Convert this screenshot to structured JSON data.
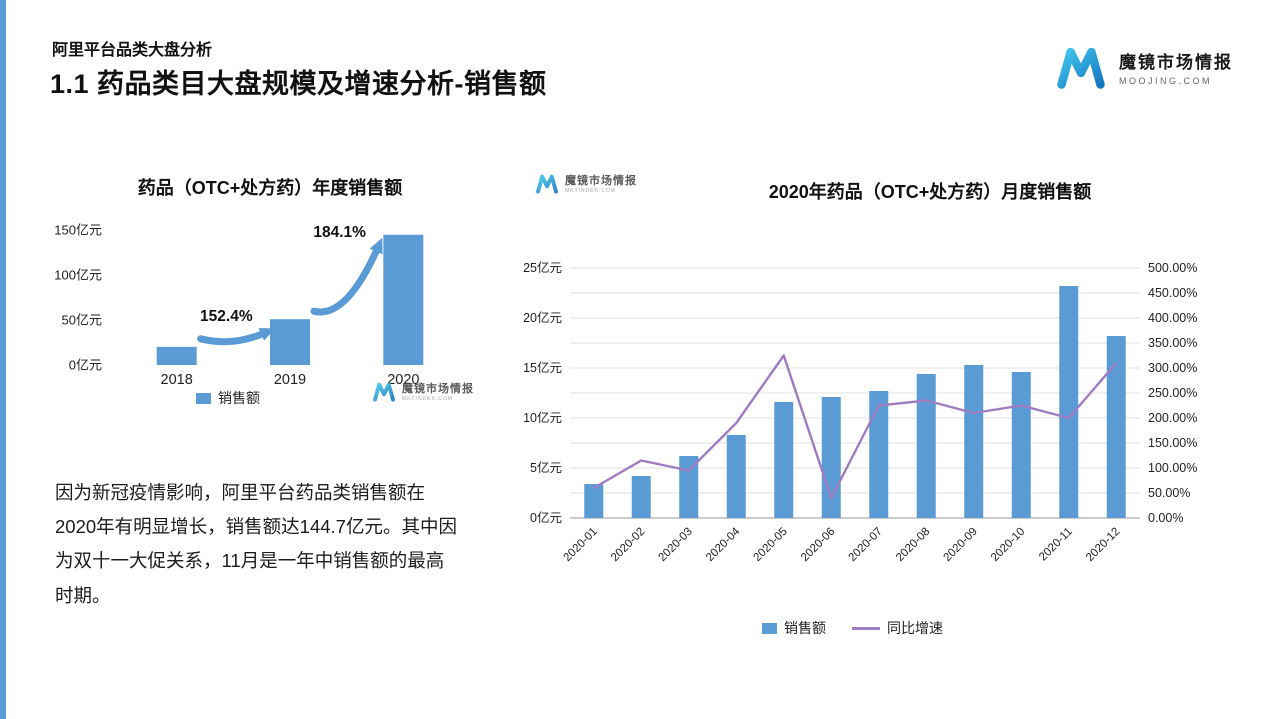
{
  "header": {
    "kicker": "阿里平台品类大盘分析",
    "title": "1.1 药品类目大盘规模及增速分析-销售额"
  },
  "brand": {
    "name": "魔镜市场情报",
    "domain": "MOOJING.COM"
  },
  "watermark": {
    "name": "魔镜市场情报",
    "domain": "MKTINDEX.COM"
  },
  "commentary": "因为新冠疫情影响，阿里平台药品类销售额在2020年有明显增长，销售额达144.7亿元。其中因为双十一大促关系，11月是一年中销售额的最高时期。",
  "colors": {
    "bar": "#5B9BD5",
    "line": "#9E7CC1",
    "accent": "#5B9BD5"
  },
  "chart_data": [
    {
      "id": "annual",
      "type": "bar",
      "title": "药品（OTC+处方药）年度销售额",
      "categories": [
        "2018",
        "2019",
        "2020"
      ],
      "values": [
        20.2,
        50.9,
        144.7
      ],
      "unit": "亿元",
      "ylim": [
        0,
        150
      ],
      "yticks": [
        0,
        50,
        100,
        150
      ],
      "ytick_labels": [
        "0亿元",
        "50亿元",
        "100亿元",
        "150亿元"
      ],
      "bar_color": "#5B9BD5",
      "annotations": [
        {
          "label": "152.4%",
          "between": [
            "2018",
            "2019"
          ]
        },
        {
          "label": "184.1%",
          "between": [
            "2019",
            "2020"
          ]
        }
      ],
      "legend": [
        {
          "label": "销售额",
          "color": "#5B9BD5"
        }
      ],
      "grid": false,
      "legend_position": "bottom"
    },
    {
      "id": "monthly",
      "type": "bar+line",
      "title": "2020年药品（OTC+处方药）月度销售额",
      "categories": [
        "2020-01",
        "2020-02",
        "2020-03",
        "2020-04",
        "2020-05",
        "2020-06",
        "2020-07",
        "2020-08",
        "2020-09",
        "2020-10",
        "2020-11",
        "2020-12"
      ],
      "series": [
        {
          "name": "销售额",
          "type": "bar",
          "axis": "left",
          "color": "#5B9BD5",
          "values": [
            3.4,
            4.2,
            6.2,
            8.3,
            11.6,
            12.1,
            12.7,
            14.4,
            15.3,
            14.6,
            23.2,
            18.2
          ]
        },
        {
          "name": "同比增速",
          "type": "line",
          "axis": "right",
          "color": "#9E7CC1",
          "values": [
            60,
            115,
            95,
            190,
            325,
            40,
            225,
            235,
            210,
            225,
            200,
            310
          ]
        }
      ],
      "left_axis": {
        "max": 25,
        "ticks": [
          0,
          5,
          10,
          15,
          20,
          25
        ],
        "labels": [
          "0亿元",
          "5亿元",
          "10亿元",
          "15亿元",
          "20亿元",
          "25亿元"
        ]
      },
      "right_axis": {
        "max": 500,
        "ticks": [
          0,
          50,
          100,
          150,
          200,
          250,
          300,
          350,
          400,
          450,
          500
        ],
        "labels": [
          "0.00%",
          "50.00%",
          "100.00%",
          "150.00%",
          "200.00%",
          "250.00%",
          "300.00%",
          "350.00%",
          "400.00%",
          "450.00%",
          "500.00%"
        ]
      },
      "grid": true,
      "legend_position": "bottom"
    }
  ]
}
